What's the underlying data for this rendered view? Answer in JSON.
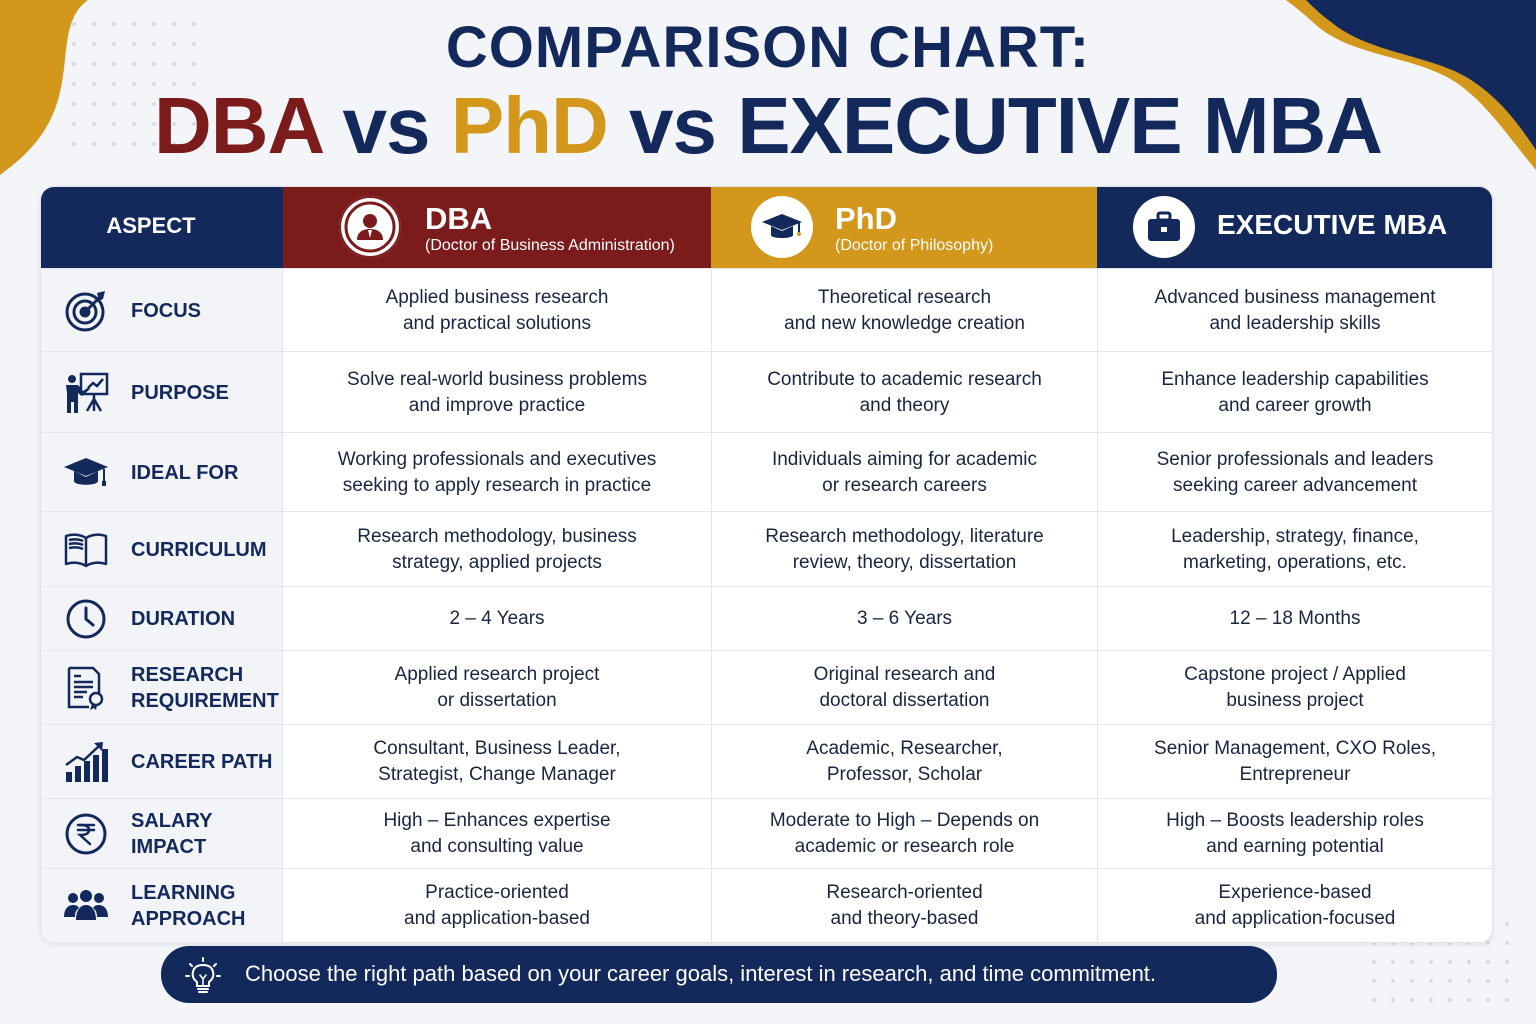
{
  "title": {
    "line1": "COMPARISON CHART:",
    "dba": "DBA",
    "vs1": "vs",
    "phd": "PhD",
    "vs2": "vs",
    "emba": "EXECUTIVE MBA"
  },
  "header": {
    "aspect": "ASPECT",
    "dba": {
      "title": "DBA",
      "subtitle": "(Doctor of Business Administration)",
      "icon": "business-person-icon"
    },
    "phd": {
      "title": "PhD",
      "subtitle": "(Doctor of Philosophy)",
      "icon": "graduation-cap-icon"
    },
    "emba": {
      "title": "EXECUTIVE MBA",
      "icon": "briefcase-icon"
    }
  },
  "rows": [
    {
      "aspect": "FOCUS",
      "icon": "target-icon",
      "dba": "Applied business research\nand practical solutions",
      "phd": "Theoretical research\nand new knowledge creation",
      "emba": "Advanced business management\nand leadership skills"
    },
    {
      "aspect": "PURPOSE",
      "icon": "presenter-icon",
      "dba": "Solve real-world business problems\nand improve practice",
      "phd": "Contribute to academic research\nand theory",
      "emba": "Enhance leadership capabilities\nand career growth"
    },
    {
      "aspect": "IDEAL FOR",
      "icon": "graduation-cap-icon",
      "dba": "Working professionals and executives\nseeking to apply research in practice",
      "phd": "Individuals aiming for academic\nor research careers",
      "emba": "Senior professionals and leaders\nseeking career advancement"
    },
    {
      "aspect": "CURRICULUM",
      "icon": "open-book-icon",
      "dba": "Research methodology, business\nstrategy, applied projects",
      "phd": "Research methodology, literature\nreview, theory, dissertation",
      "emba": "Leadership, strategy, finance,\nmarketing, operations, etc."
    },
    {
      "aspect": "DURATION",
      "icon": "clock-icon",
      "dba": "2 – 4 Years",
      "phd": "3 – 6 Years",
      "emba": "12 – 18 Months"
    },
    {
      "aspect": "RESEARCH\nREQUIREMENT",
      "icon": "certificate-document-icon",
      "dba": "Applied research project\nor dissertation",
      "phd": "Original research and\ndoctoral dissertation",
      "emba": "Capstone project / Applied\nbusiness project"
    },
    {
      "aspect": "CAREER PATH",
      "icon": "growth-chart-icon",
      "dba": "Consultant, Business Leader,\nStrategist, Change Manager",
      "phd": "Academic, Researcher,\nProfessor, Scholar",
      "emba": "Senior Management, CXO Roles,\nEntrepreneur"
    },
    {
      "aspect": "SALARY\nIMPACT",
      "icon": "rupee-icon",
      "dba": "High – Enhances expertise\nand consulting value",
      "phd": "Moderate to High – Depends on\nacademic or research role",
      "emba": "High – Boosts leadership roles\nand earning potential"
    },
    {
      "aspect": "LEARNING\nAPPROACH",
      "icon": "group-people-icon",
      "dba": "Practice-oriented\nand application-based",
      "phd": "Research-oriented\nand theory-based",
      "emba": "Experience-based\nand application-focused"
    }
  ],
  "footer": {
    "icon": "lightbulb-icon",
    "text": "Choose the right path based on your career goals, interest in research, and time commitment."
  },
  "colors": {
    "navy": "#13295c",
    "maroon": "#7c1b1b",
    "gold": "#d3971b",
    "background": "#f4f5f8"
  }
}
